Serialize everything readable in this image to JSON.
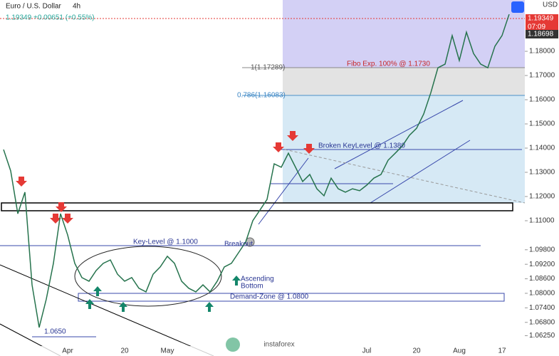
{
  "chart_data": {
    "type": "line",
    "title": "Euro / U.S. Dollar",
    "timeframe": "4h",
    "last_price": "1.19349",
    "change": "+0.00651 (+0.55%)",
    "currency": "USD",
    "countdown": "07:09",
    "price_tag": "1.18698",
    "categories": [
      null,
      null,
      null,
      null,
      null,
      null,
      null,
      null,
      null,
      "Apr",
      null,
      null,
      null,
      null,
      null,
      null,
      null,
      "20",
      null,
      null,
      null,
      null,
      null,
      "May",
      null,
      null,
      null,
      null,
      null,
      null,
      null,
      null,
      null,
      null,
      null,
      null,
      null,
      null,
      null,
      null,
      null,
      null,
      null,
      null,
      null,
      null,
      null,
      null,
      null,
      null,
      null,
      "Jul",
      null,
      null,
      null,
      null,
      null,
      null,
      "20",
      null,
      null,
      null,
      null,
      null,
      "Aug",
      null,
      null,
      null,
      null,
      null,
      "17",
      null
    ],
    "series": [
      {
        "name": "EUR/USD",
        "color": "#26734d",
        "values": [
          1.1394,
          1.1306,
          1.1129,
          1.1218,
          1.0835,
          1.0659,
          1.0776,
          1.0924,
          1.1129,
          1.1041,
          1.0924,
          1.0865,
          1.085,
          1.0894,
          1.0924,
          1.0938,
          1.0879,
          1.085,
          1.0865,
          1.0821,
          1.0806,
          1.0879,
          1.0909,
          1.0953,
          1.0924,
          1.085,
          1.0821,
          1.0806,
          1.0835,
          1.0806,
          1.085,
          1.0909,
          1.0924,
          1.0968,
          1.1012,
          1.11,
          1.1144,
          1.1188,
          1.1335,
          1.1321,
          1.1379,
          1.1321,
          1.1262,
          1.1291,
          1.1232,
          1.1203,
          1.1276,
          1.1232,
          1.1218,
          1.1232,
          1.1224,
          1.1247,
          1.1276,
          1.1291,
          1.135,
          1.1379,
          1.1409,
          1.1453,
          1.1482,
          1.1541,
          1.1629,
          1.1732,
          1.1747,
          1.1865,
          1.1762,
          1.1879,
          1.1791,
          1.1747,
          1.1732,
          1.1821,
          1.1865,
          1.1953
        ]
      }
    ],
    "ylim": [
      1.0541,
      1.2012
    ],
    "yticks": [
      {
        "value": 1.18,
        "label": "1.18000"
      },
      {
        "value": 1.17,
        "label": "1.17000"
      },
      {
        "value": 1.16,
        "label": "1.16000"
      },
      {
        "value": 1.15,
        "label": "1.15000"
      },
      {
        "value": 1.14,
        "label": "1.14000"
      },
      {
        "value": 1.13,
        "label": "1.13000"
      },
      {
        "value": 1.12,
        "label": "1.12000"
      },
      {
        "value": 1.11,
        "label": "1.11000"
      },
      {
        "value": 1.098,
        "label": "1.09800"
      },
      {
        "value": 1.092,
        "label": "1.09200"
      },
      {
        "value": 1.086,
        "label": "1.08600"
      },
      {
        "value": 1.08,
        "label": "1.08000"
      },
      {
        "value": 1.074,
        "label": "1.07400"
      },
      {
        "value": 1.068,
        "label": "1.06800"
      },
      {
        "value": 1.0625,
        "label": "1.06250"
      }
    ],
    "annotations": {
      "fibo_exp": "Fibo Exp. 100% @ 1.1730",
      "fib_1": "1(1.17289)",
      "fib_786": "0.786(1.16083)",
      "broken_key": "Broken KeyLevel @ 1.1380",
      "key_level": "Key-Level @ 1.1000",
      "breakout": "Breakout",
      "ascending": "Ascending",
      "bottom": "Bottom",
      "demand": "Demand-Zone @ 1.0800",
      "low": "1.0650"
    },
    "watermark": "instaforex"
  }
}
